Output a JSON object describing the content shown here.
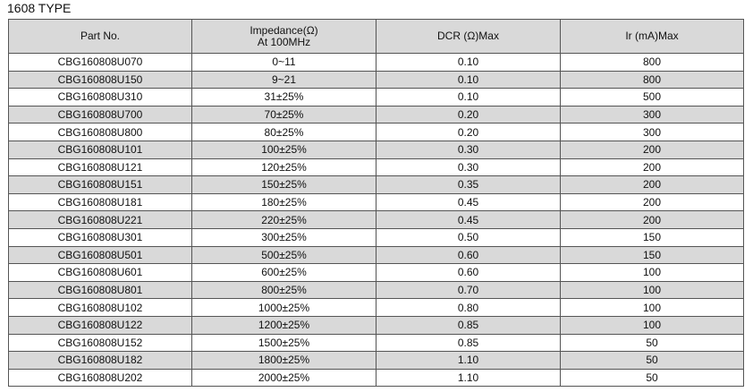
{
  "title": "1608 TYPE",
  "table": {
    "header": [
      "Part No.",
      [
        "Impedance(Ω)",
        "At 100MHz"
      ],
      "DCR (Ω)Max",
      "Ir (mA)Max"
    ],
    "rows": [
      [
        "CBG160808U070",
        "0~11",
        "0.10",
        "800"
      ],
      [
        "CBG160808U150",
        "9~21",
        "0.10",
        "800"
      ],
      [
        "CBG160808U310",
        "31±25%",
        "0.10",
        "500"
      ],
      [
        "CBG160808U700",
        "70±25%",
        "0.20",
        "300"
      ],
      [
        "CBG160808U800",
        "80±25%",
        "0.20",
        "300"
      ],
      [
        "CBG160808U101",
        "100±25%",
        "0.30",
        "200"
      ],
      [
        "CBG160808U121",
        "120±25%",
        "0.30",
        "200"
      ],
      [
        "CBG160808U151",
        "150±25%",
        "0.35",
        "200"
      ],
      [
        "CBG160808U181",
        "180±25%",
        "0.45",
        "200"
      ],
      [
        "CBG160808U221",
        "220±25%",
        "0.45",
        "200"
      ],
      [
        "CBG160808U301",
        "300±25%",
        "0.50",
        "150"
      ],
      [
        "CBG160808U501",
        "500±25%",
        "0.60",
        "150"
      ],
      [
        "CBG160808U601",
        "600±25%",
        "0.60",
        "100"
      ],
      [
        "CBG160808U801",
        "800±25%",
        "0.70",
        "100"
      ],
      [
        "CBG160808U102",
        "1000±25%",
        "0.80",
        "100"
      ],
      [
        "CBG160808U122",
        "1200±25%",
        "0.85",
        "100"
      ],
      [
        "CBG160808U152",
        "1500±25%",
        "0.85",
        "50"
      ],
      [
        "CBG160808U182",
        "1800±25%",
        "1.10",
        "50"
      ],
      [
        "CBG160808U202",
        "2000±25%",
        "1.10",
        "50"
      ]
    ]
  }
}
